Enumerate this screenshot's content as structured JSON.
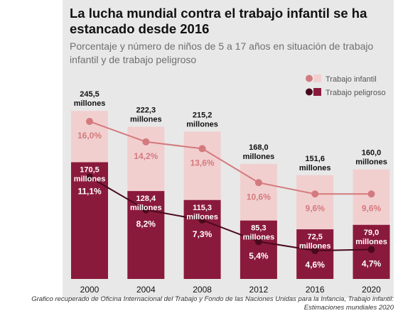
{
  "title": "La lucha mundial contra el trabajo infantil se ha estancado desde 2016",
  "subtitle": "Porcentaje y número de niños de 5 a 17 años en situación de trabajo infantil y de trabajo peligroso",
  "caption": "Grafico recuperado de Oficina Internacional del Trabajo y Fondo de las Naciones Unidas para la Infancia, Trabajo infantil: Estimaciones mundiales 2020",
  "colors": {
    "child_labour_bar": "#f2cfcf",
    "child_labour_line": "#d47a7e",
    "hazardous_bar": "#8a1a3c",
    "hazardous_line": "#4a0a1e",
    "panel": "#e8e8e8"
  },
  "chart_data": {
    "type": "bar",
    "categories": [
      "2000",
      "2004",
      "2008",
      "2012",
      "2016",
      "2020"
    ],
    "series": [
      {
        "name": "Trabajo infantil",
        "values_millions": [
          245.5,
          222.3,
          215.2,
          168.0,
          151.6,
          160.0
        ],
        "value_labels": [
          "245,5",
          "222,3",
          "215,2",
          "168,0",
          "151,6",
          "160,0"
        ],
        "percent": [
          16.0,
          14.2,
          13.6,
          10.6,
          9.6,
          9.6
        ],
        "percent_labels": [
          "16,0%",
          "14,2%",
          "13,6%",
          "10,6%",
          "9,6%",
          "9,6%"
        ]
      },
      {
        "name": "Trabajo peligroso",
        "values_millions": [
          170.5,
          128.4,
          115.3,
          85.3,
          72.5,
          79.0
        ],
        "value_labels": [
          "170,5",
          "128,4",
          "115,3",
          "85,3",
          "72,5",
          "79,0"
        ],
        "percent": [
          11.1,
          8.2,
          7.3,
          5.4,
          4.6,
          4.7
        ],
        "percent_labels": [
          "11,1%",
          "8,2%",
          "7,3%",
          "5,4%",
          "4,6%",
          "4,7%"
        ]
      }
    ],
    "unit_label": "millones",
    "bar_axis_range_millions": [
      0,
      255
    ],
    "line_axis_range_percent": [
      2.1,
      19.2
    ],
    "grid": false,
    "legend_position": "top-right"
  }
}
